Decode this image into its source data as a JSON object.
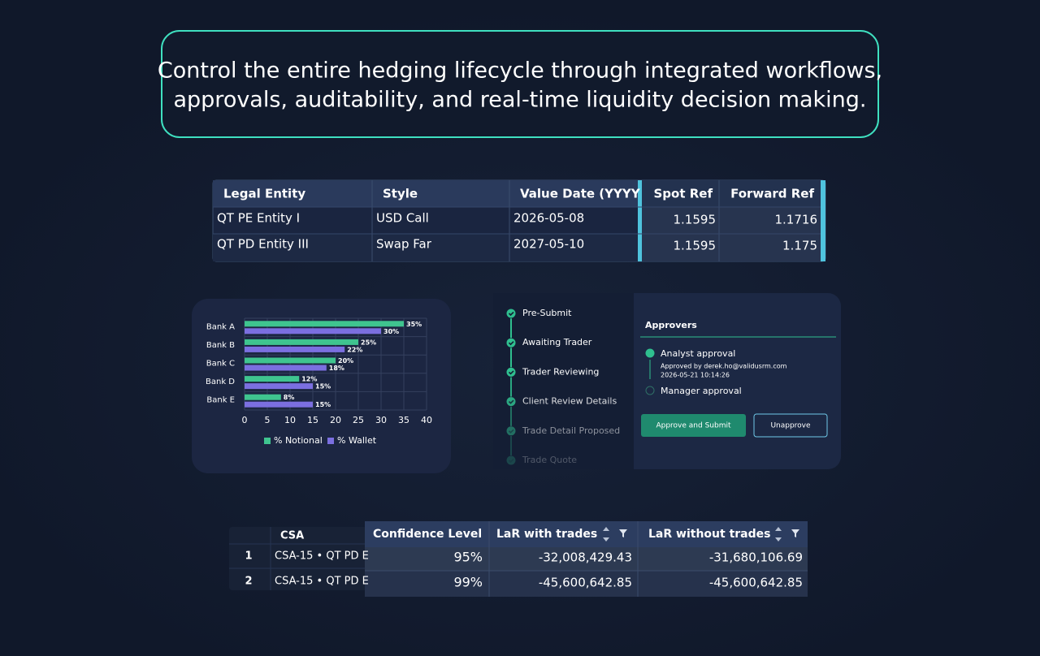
{
  "headline": {
    "lines": [
      "Control the entire hedging lifecycle through integrated workflows,",
      "approvals, auditability, and real-time liquidity decision making."
    ]
  },
  "entity_table": {
    "headers": [
      "Legal Entity",
      "Style",
      "Value Date (YYYY",
      "Spot Ref",
      "Forward Ref"
    ],
    "rows": [
      [
        "QT PE Entity I",
        "USD Call",
        "2026-05-08",
        "1.1595",
        "1.1716"
      ],
      [
        "QT PD Entity III",
        "Swap Far",
        "2027-05-10",
        "1.1595",
        "1.175"
      ]
    ]
  },
  "chart_data": {
    "type": "bar",
    "orientation": "horizontal",
    "categories": [
      "Bank A",
      "Bank B",
      "Bank C",
      "Bank D",
      "Bank E"
    ],
    "series": [
      {
        "name": "% Notional",
        "color": "#3fc48f",
        "values": [
          35,
          25,
          20,
          12,
          8
        ],
        "value_labels": [
          "35%",
          "25%",
          "20%",
          "12%",
          "8%"
        ]
      },
      {
        "name": "% Wallet",
        "color": "#7b6fe0",
        "values": [
          30,
          22,
          18,
          15,
          15
        ],
        "value_labels": [
          "30%",
          "22%",
          "18%",
          "15%",
          "15%"
        ]
      }
    ],
    "xlim": [
      0,
      40
    ],
    "xticks": [
      0,
      5,
      10,
      15,
      20,
      25,
      30,
      35,
      40
    ],
    "grid": true
  },
  "workflow": {
    "steps": [
      "Pre-Submit",
      "Awaiting Trader",
      "Trader Reviewing",
      "Client Review Details",
      "Trade Detail Proposed",
      "Trade Quote"
    ],
    "approvers": {
      "title": "Approvers",
      "analyst": {
        "label": "Analyst approval",
        "detail": "Approved by derek.ho@validusrm.com",
        "timestamp": "2026-05-21 10:14:26"
      },
      "manager": {
        "label": "Manager approval"
      }
    },
    "buttons": {
      "approve": "Approve and Submit",
      "unapprove": "Unapprove"
    }
  },
  "lar_table": {
    "headers": {
      "csa": "CSA",
      "confidence": "Confidence Level",
      "with": "LaR with trades",
      "without": "LaR without trades"
    },
    "rows": [
      {
        "index": "1",
        "csa": "CSA-15 • QT PD E",
        "confidence": "95%",
        "with": "-32,008,429.43",
        "without": "-31,680,106.69"
      },
      {
        "index": "2",
        "csa": "CSA-15 • QT PD E",
        "confidence": "99%",
        "with": "-45,600,642.85",
        "without": "-45,600,642.85"
      }
    ]
  }
}
